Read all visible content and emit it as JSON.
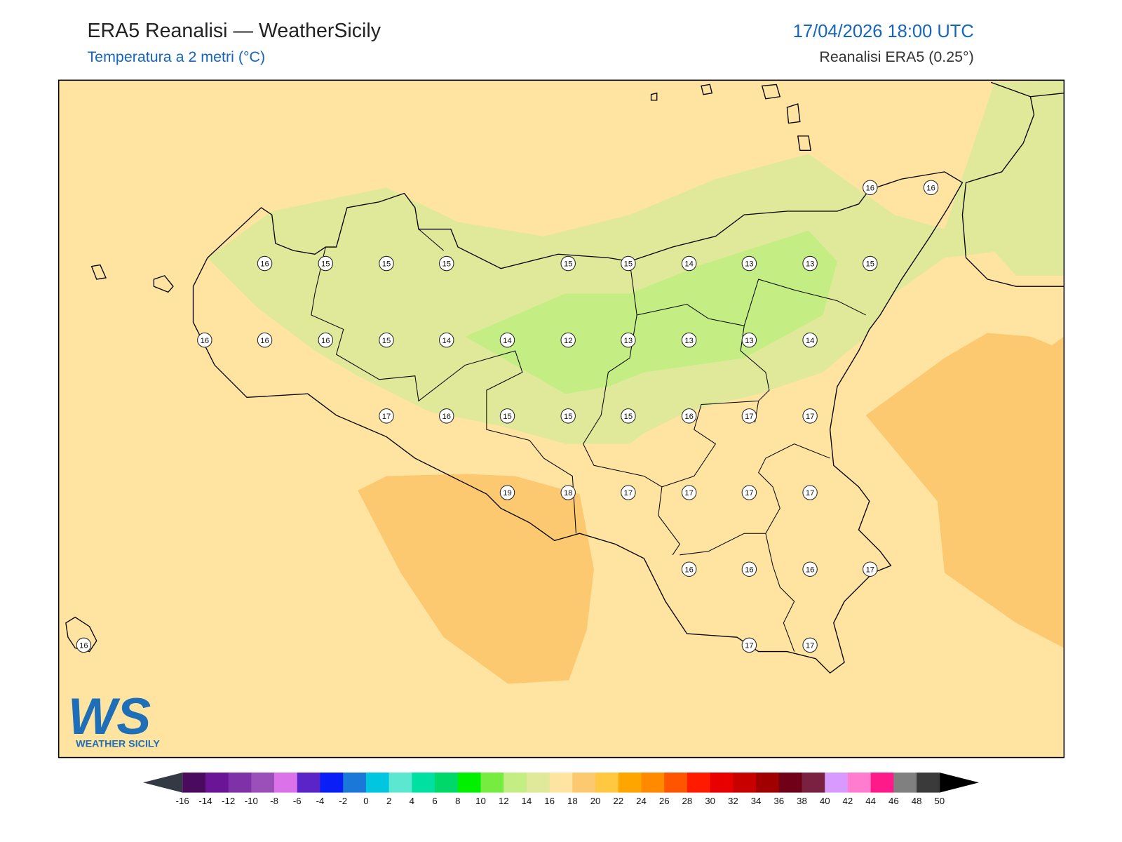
{
  "header": {
    "title": "ERA5 Reanalisi — WeatherSicily",
    "subtitle": "Temperatura a 2 metri (°C)",
    "datetime": "17/04/2026 18:00 UTC",
    "source": "Reanalisi ERA5 (0.25°)"
  },
  "stations": [
    16,
    16,
    16,
    15,
    15,
    15,
    15,
    15,
    14,
    13,
    13,
    15,
    16,
    16,
    16,
    15,
    14,
    14,
    12,
    13,
    13,
    13,
    14,
    17,
    16,
    15,
    15,
    15,
    16,
    17,
    17,
    19,
    18,
    17,
    17,
    17,
    17,
    16,
    16,
    16,
    17,
    16,
    17,
    17
  ],
  "logo": {
    "text": "WS",
    "caption": "WEATHER SICILY"
  },
  "colorbar": {
    "ticks": [
      -16,
      -14,
      -12,
      -10,
      -8,
      -6,
      -4,
      -2,
      0,
      2,
      4,
      6,
      8,
      10,
      12,
      14,
      16,
      18,
      20,
      22,
      24,
      26,
      28,
      30,
      32,
      34,
      36,
      38,
      40,
      42,
      44,
      46,
      48,
      50
    ],
    "colors": [
      "#4a0a5e",
      "#6a1595",
      "#7f31a8",
      "#9b4fb8",
      "#dc72ea",
      "#5a24c8",
      "#0a1ef7",
      "#1a78d8",
      "#00c6e0",
      "#5ce8d0",
      "#00e0a0",
      "#00d86a",
      "#00f000",
      "#76ec40",
      "#c4ed84",
      "#e0e99a",
      "#fee4a0",
      "#fcc870",
      "#ffc840",
      "#ffa500",
      "#ff8a00",
      "#ff5500",
      "#ff1a00",
      "#e80000",
      "#c80000",
      "#a00000",
      "#700018",
      "#7a2040",
      "#d89aff",
      "#ff7ccf",
      "#ff1a8a",
      "#808080",
      "#3a3a3a"
    ],
    "under_color": "#333a44",
    "over_color": "#000000"
  }
}
